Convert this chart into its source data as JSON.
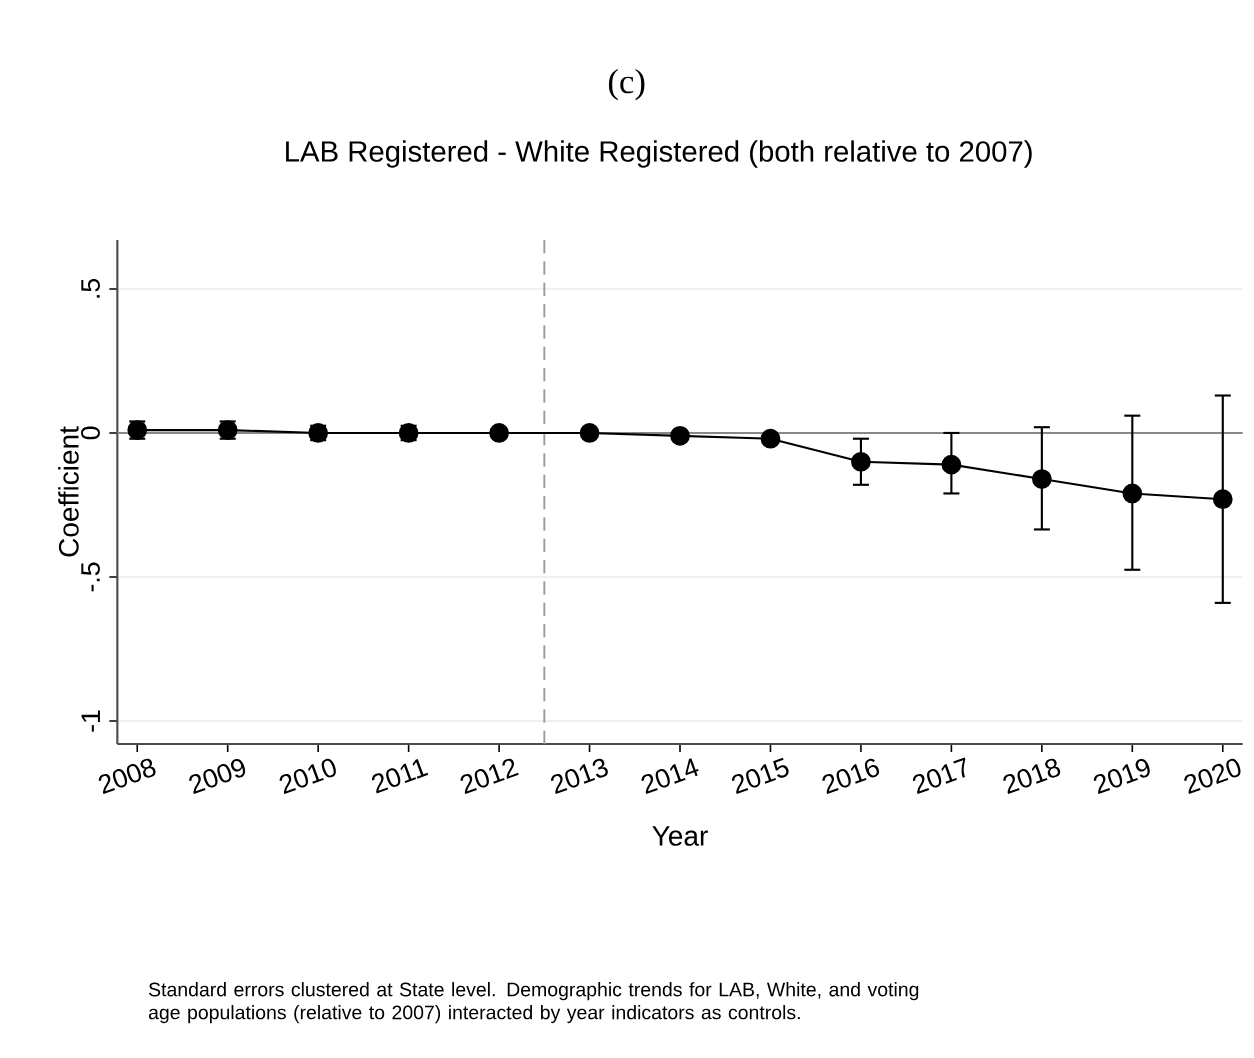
{
  "chart_data": {
    "type": "line",
    "title": "(c)",
    "subtitle": "LAB Registered - White Registered (both relative to 2007)",
    "xlabel": "Year",
    "ylabel": "Coefficient",
    "x": [
      2008,
      2009,
      2010,
      2011,
      2012,
      2013,
      2014,
      2015,
      2016,
      2017,
      2018,
      2019,
      2020
    ],
    "series": [
      {
        "color": "#000000",
        "values": [
          0.01,
          0.01,
          0.0,
          0.0,
          0.0,
          0.0,
          -0.01,
          -0.02,
          -0.1,
          -0.11,
          -0.16,
          -0.21,
          -0.23
        ],
        "errors": [
          [
            -0.02,
            0.04
          ],
          [
            -0.02,
            0.04
          ],
          [
            -0.025,
            0.025
          ],
          [
            -0.025,
            0.025
          ],
          null,
          null,
          null,
          null,
          [
            -0.18,
            -0.02
          ],
          [
            -0.21,
            0.0
          ],
          [
            -0.335,
            0.02
          ],
          [
            -0.475,
            0.06
          ],
          [
            -0.59,
            0.13
          ]
        ]
      }
    ],
    "xlim": [
      2007.78,
      2020.22
    ],
    "ylim": [
      -1.08,
      0.67
    ],
    "xticks": [
      2008,
      2009,
      2010,
      2011,
      2012,
      2013,
      2014,
      2015,
      2016,
      2017,
      2018,
      2019,
      2020
    ],
    "yticks": [
      {
        "value": 0.5,
        "label": ".5"
      },
      {
        "value": 0,
        "label": "0"
      },
      {
        "value": -0.5,
        "label": "-.5"
      },
      {
        "value": -1,
        "label": "-1"
      }
    ],
    "grid": "y",
    "marker": "circle",
    "line_style": "solid",
    "ref_lines": [
      {
        "axis": "x",
        "value": 2012.5,
        "color": "#999999",
        "line_style": "dashed"
      },
      {
        "axis": "y",
        "value": 0,
        "color": "#888888",
        "line_style": "solid"
      }
    ],
    "annotations": [
      "Standard errors clustered at State level. Demographic trends for LAB, White, and voting age populations (relative to 2007) interacted by year indicators as controls."
    ]
  }
}
